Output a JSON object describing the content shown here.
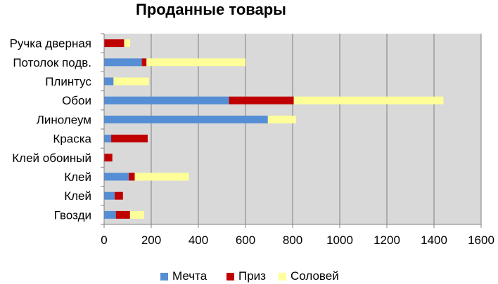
{
  "chart_data": {
    "type": "bar",
    "orientation": "horizontal",
    "stacked": true,
    "title": "Проданные товары",
    "categories": [
      "Гвозди",
      "Клей",
      "Клей",
      "Клей обоиный",
      "Краска",
      "Линолеум",
      "Обои",
      "Плинтус",
      "Потолок подв.",
      "Ручка дверная"
    ],
    "series": [
      {
        "name": "Мечта",
        "color": "#558ED5",
        "values": [
          50,
          45,
          105,
          0,
          30,
          695,
          530,
          40,
          160,
          0
        ]
      },
      {
        "name": "Приз",
        "color": "#C00000",
        "values": [
          60,
          35,
          25,
          35,
          155,
          0,
          275,
          0,
          20,
          85
        ]
      },
      {
        "name": "Соловей",
        "color": "#FFFF99",
        "values": [
          60,
          0,
          230,
          0,
          0,
          120,
          635,
          150,
          420,
          25
        ]
      }
    ],
    "xlim": [
      0,
      1600
    ],
    "xticks": [
      "0",
      "200",
      "400",
      "600",
      "800",
      "1000",
      "1200",
      "1400",
      "1600"
    ],
    "grid": "vertical",
    "plot_background": "#D9D9D9",
    "legend_position": "bottom"
  }
}
